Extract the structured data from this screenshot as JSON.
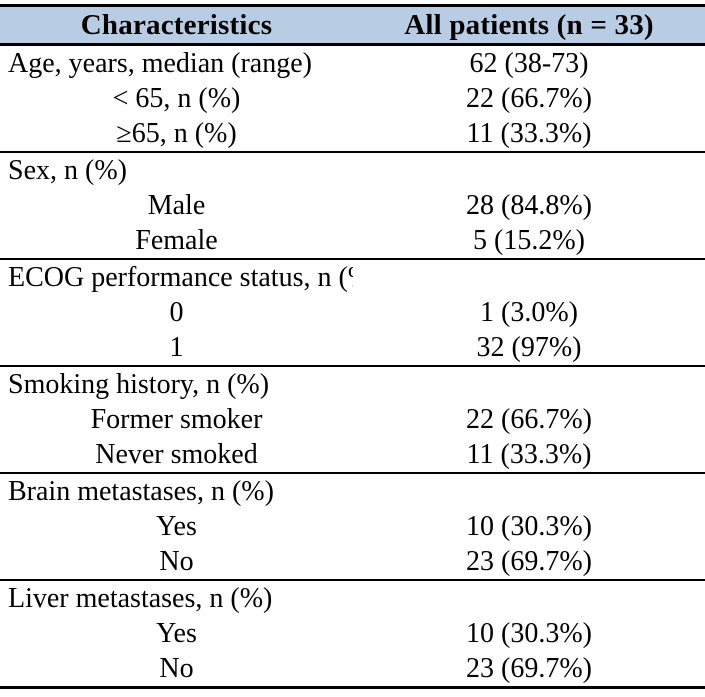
{
  "colors": {
    "header_background": "#b8cce4",
    "rule_color": "#000000",
    "text_color": "#000000"
  },
  "table": {
    "header": {
      "col1": "Characteristics",
      "col2": "All patients (n = 33)"
    },
    "sections": [
      {
        "rows": [
          {
            "type": "section-with-value",
            "label": "Age, years, median (range)",
            "value": "62 (38-73)"
          },
          {
            "type": "sub",
            "label": "< 65, n (%)",
            "value": "22 (66.7%)"
          },
          {
            "type": "sub",
            "label": "≥65, n (%)",
            "value": "11 (33.3%)"
          }
        ]
      },
      {
        "rows": [
          {
            "type": "section",
            "label": "Sex, n (%)",
            "value": ""
          },
          {
            "type": "sub",
            "label": "Male",
            "value": "28 (84.8%)"
          },
          {
            "type": "sub",
            "label": "Female",
            "value": "5 (15.2%)"
          }
        ]
      },
      {
        "rows": [
          {
            "type": "section",
            "label": "ECOG performance status, n (%)",
            "value": ""
          },
          {
            "type": "sub",
            "label": "0",
            "value": "1 (3.0%)"
          },
          {
            "type": "sub",
            "label": "1",
            "value": "32 (97%)"
          }
        ]
      },
      {
        "rows": [
          {
            "type": "section",
            "label": "Smoking history, n (%)",
            "value": ""
          },
          {
            "type": "sub",
            "label": "Former smoker",
            "value": "22 (66.7%)"
          },
          {
            "type": "sub",
            "label": "Never smoked",
            "value": "11 (33.3%)"
          }
        ]
      },
      {
        "rows": [
          {
            "type": "section",
            "label": "Brain metastases, n (%)",
            "value": ""
          },
          {
            "type": "sub",
            "label": "Yes",
            "value": "10 (30.3%)"
          },
          {
            "type": "sub",
            "label": "No",
            "value": "23 (69.7%)"
          }
        ]
      },
      {
        "rows": [
          {
            "type": "section",
            "label": "Liver metastases, n (%)",
            "value": ""
          },
          {
            "type": "sub",
            "label": "Yes",
            "value": "10 (30.3%)"
          },
          {
            "type": "sub",
            "label": "No",
            "value": "23 (69.7%)"
          }
        ]
      }
    ]
  }
}
